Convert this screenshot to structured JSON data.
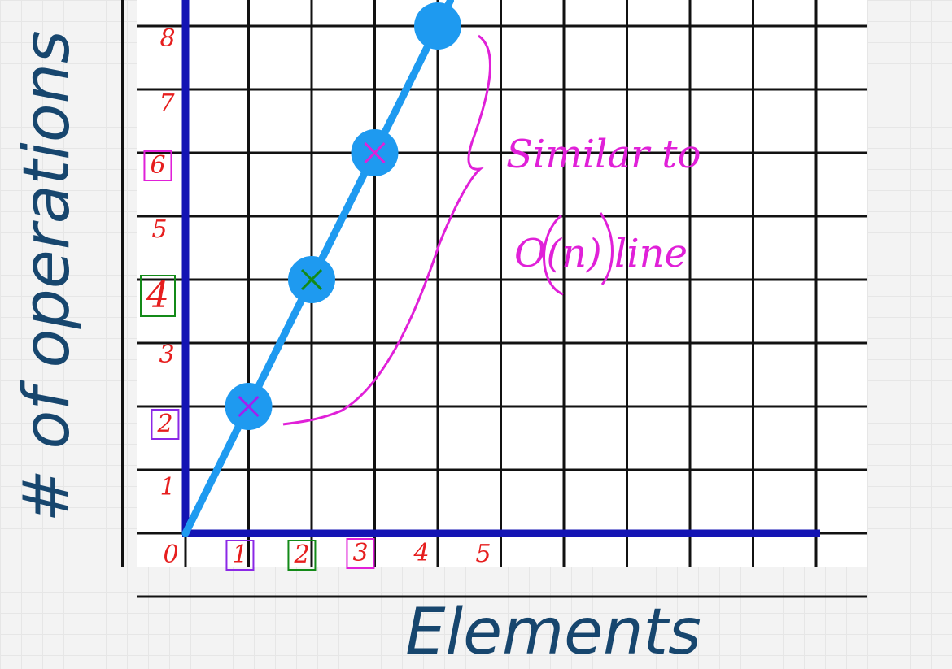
{
  "chart_data": {
    "type": "line",
    "title": "",
    "xlabel": "Elements",
    "ylabel": "# of operations",
    "xlim": [
      0,
      10
    ],
    "ylim": [
      0,
      8.5
    ],
    "grid": true,
    "x_ticks": [
      "0",
      "1",
      "2",
      "3",
      "4",
      "5"
    ],
    "y_ticks": [
      "1",
      "2",
      "3",
      "4",
      "5",
      "6",
      "7",
      "8"
    ],
    "series": [
      {
        "color": "#1e9af0",
        "x": [
          0,
          1,
          2,
          3,
          4,
          4.2
        ],
        "y": [
          0,
          2,
          4,
          6,
          8,
          8.4
        ]
      }
    ],
    "points": [
      {
        "x": 1,
        "y": 2,
        "mark": "x",
        "mark_color": "#a020f0"
      },
      {
        "x": 2,
        "y": 4,
        "mark": "x",
        "mark_color": "#138a18"
      },
      {
        "x": 3,
        "y": 6,
        "mark": "x",
        "mark_color": "#e020d8"
      },
      {
        "x": 4,
        "y": 8,
        "mark": "",
        "mark_color": ""
      }
    ],
    "annotations": [
      "Similar to",
      "O(n) line"
    ]
  },
  "colors": {
    "axis": "#1414b4",
    "grid": "#111111",
    "line": "#1e9af0",
    "tick": "#e61e1e",
    "label": "#17466e",
    "annotation": "#e020d8"
  }
}
